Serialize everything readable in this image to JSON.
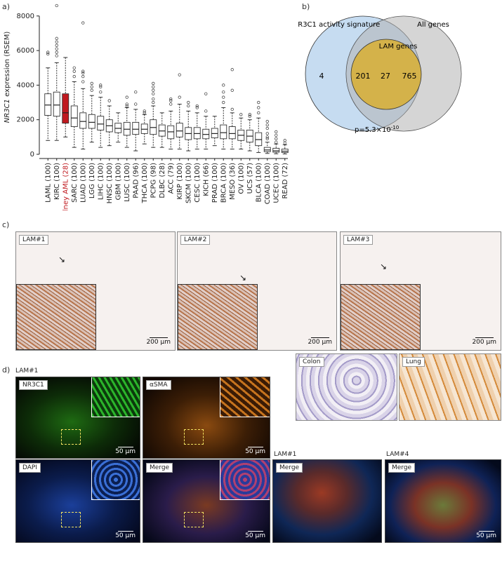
{
  "panels": {
    "a": "a)",
    "b": "b)",
    "c": "c)",
    "d": "d)"
  },
  "chart_data": {
    "type": "box",
    "ylabel_italic": "NR3C1",
    "ylabel_rest": " expression (RSEM)",
    "ylim": [
      0,
      8600
    ],
    "yticks": [
      0,
      2000,
      4000,
      6000,
      8000
    ],
    "highlight_color": "#c0191f",
    "categories": [
      {
        "label": "LAML (100)",
        "median": 2850,
        "q1": 2250,
        "q3": 3500,
        "lo": 800,
        "hi": 5000,
        "out": [
          5800,
          5900
        ]
      },
      {
        "label": "KIRC (100)",
        "median": 2850,
        "q1": 2200,
        "q3": 3600,
        "lo": 800,
        "hi": 5300,
        "out": [
          5700,
          5900,
          6100,
          6300,
          6500,
          6700,
          8600
        ]
      },
      {
        "label": "Kidney AML (28)",
        "median": 2400,
        "q1": 1800,
        "q3": 3500,
        "lo": 1000,
        "hi": 5600,
        "out": [],
        "highlight": true
      },
      {
        "label": "SARC (100)",
        "median": 2100,
        "q1": 1600,
        "q3": 2800,
        "lo": 400,
        "hi": 4200,
        "out": [
          4500,
          4800,
          5000
        ]
      },
      {
        "label": "LUAD (100)",
        "median": 1900,
        "q1": 1500,
        "q3": 2400,
        "lo": 300,
        "hi": 3800,
        "out": [
          4200,
          4500,
          4700,
          4800,
          7600
        ]
      },
      {
        "label": "LGG (100)",
        "median": 1850,
        "q1": 1500,
        "q3": 2300,
        "lo": 700,
        "hi": 3400,
        "out": [
          3700,
          3900,
          4100
        ]
      },
      {
        "label": "LIHC (100)",
        "median": 1750,
        "q1": 1400,
        "q3": 2200,
        "lo": 400,
        "hi": 3300,
        "out": [
          3600,
          3900,
          4000
        ]
      },
      {
        "label": "HNSC (100)",
        "median": 1650,
        "q1": 1300,
        "q3": 2000,
        "lo": 500,
        "hi": 2800,
        "out": [
          3100
        ]
      },
      {
        "label": "GBM (100)",
        "median": 1500,
        "q1": 1250,
        "q3": 1800,
        "lo": 700,
        "hi": 2400,
        "out": []
      },
      {
        "label": "LUSC (100)",
        "median": 1450,
        "q1": 1100,
        "q3": 1850,
        "lo": 400,
        "hi": 2700,
        "out": [
          2800,
          2900,
          3300
        ]
      },
      {
        "label": "PAAD (96)",
        "median": 1450,
        "q1": 1150,
        "q3": 1850,
        "lo": 200,
        "hi": 2600,
        "out": [
          2900,
          3600
        ]
      },
      {
        "label": "THCA (100)",
        "median": 1450,
        "q1": 1200,
        "q3": 1750,
        "lo": 600,
        "hi": 2300,
        "out": [
          2400,
          2500
        ]
      },
      {
        "label": "PCPG (98)",
        "median": 1550,
        "q1": 1150,
        "q3": 2000,
        "lo": 400,
        "hi": 2800,
        "out": [
          3000,
          3200,
          3500,
          3700,
          3900,
          4100
        ]
      },
      {
        "label": "DLBC (28)",
        "median": 1350,
        "q1": 1050,
        "q3": 1700,
        "lo": 400,
        "hi": 2400,
        "out": []
      },
      {
        "label": "ACC (79)",
        "median": 1300,
        "q1": 900,
        "q3": 1650,
        "lo": 300,
        "hi": 2500,
        "out": [
          2900,
          3100,
          3200
        ]
      },
      {
        "label": "KIRP (100)",
        "median": 1350,
        "q1": 1000,
        "q3": 1800,
        "lo": 300,
        "hi": 2900,
        "out": [
          3300,
          4600
        ]
      },
      {
        "label": "SKCM (100)",
        "median": 1200,
        "q1": 850,
        "q3": 1550,
        "lo": 200,
        "hi": 2500,
        "out": [
          2800,
          3000
        ]
      },
      {
        "label": "CESC (100)",
        "median": 1200,
        "q1": 900,
        "q3": 1550,
        "lo": 300,
        "hi": 2400,
        "out": [
          2700,
          2800
        ]
      },
      {
        "label": "KICH (66)",
        "median": 1150,
        "q1": 900,
        "q3": 1450,
        "lo": 300,
        "hi": 2200,
        "out": [
          2500,
          3500
        ]
      },
      {
        "label": "PRAD (100)",
        "median": 1200,
        "q1": 950,
        "q3": 1500,
        "lo": 500,
        "hi": 2200,
        "out": []
      },
      {
        "label": "BRCA (100)",
        "median": 1250,
        "q1": 900,
        "q3": 1700,
        "lo": 300,
        "hi": 2700,
        "out": [
          3000,
          3300,
          3600,
          4000
        ]
      },
      {
        "label": "MESO (36)",
        "median": 1200,
        "q1": 900,
        "q3": 1600,
        "lo": 300,
        "hi": 2400,
        "out": [
          2600,
          3700,
          4900
        ]
      },
      {
        "label": "OV (100)",
        "median": 1100,
        "q1": 800,
        "q3": 1400,
        "lo": 300,
        "hi": 2100,
        "out": [
          2300
        ]
      },
      {
        "label": "UCS (57)",
        "median": 1050,
        "q1": 700,
        "q3": 1400,
        "lo": 200,
        "hi": 2000,
        "out": [
          2200,
          2300
        ]
      },
      {
        "label": "BLCA (100)",
        "median": 850,
        "q1": 500,
        "q3": 1250,
        "lo": 100,
        "hi": 2100,
        "out": [
          2400,
          2700,
          3000
        ]
      },
      {
        "label": "COAD (100)",
        "median": 250,
        "q1": 150,
        "q3": 400,
        "lo": 50,
        "hi": 700,
        "out": [
          900,
          1000,
          1200,
          1500,
          1700,
          1900
        ]
      },
      {
        "label": "UCEC (100)",
        "median": 200,
        "q1": 120,
        "q3": 350,
        "lo": 30,
        "hi": 600,
        "out": [
          700,
          900,
          1100,
          1300
        ]
      },
      {
        "label": "READ (72)",
        "median": 180,
        "q1": 100,
        "q3": 300,
        "lo": 20,
        "hi": 550,
        "out": [
          650,
          800
        ]
      }
    ]
  },
  "venn": {
    "left_label": "NR3C1 activity signature",
    "right_label": "All genes",
    "inner_label": "LAM genes",
    "count_left_only": "4",
    "count_left_right": "201",
    "count_all_three": "27",
    "count_inner_only": "765",
    "pvalue_prefix": "p=5.3×10",
    "pvalue_exp": "-10",
    "colors": {
      "left": "#bcd6ee",
      "right": "#c8c8c8",
      "inner": "#d4b24a"
    }
  },
  "ihc": {
    "samples": [
      {
        "tag": "LAM#1",
        "scale": "200 μm"
      },
      {
        "tag": "LAM#2",
        "scale": "200 μm"
      },
      {
        "tag": "LAM#3",
        "scale": "200 μm"
      }
    ],
    "controls": [
      {
        "tag": "Colon"
      },
      {
        "tag": "Lung"
      }
    ]
  },
  "fluor": {
    "sample_label": "LAM#1",
    "panels": [
      {
        "tag": "NR3C1",
        "scale": "50 μm"
      },
      {
        "tag": "αSMA",
        "scale": "50 μm"
      },
      {
        "tag": "DAPI",
        "scale": "50 μm"
      },
      {
        "tag": "Merge",
        "scale": "50 μm"
      }
    ],
    "extra": [
      {
        "sample": "LAM#1",
        "tag": "Merge",
        "scale": "50 μm"
      },
      {
        "sample": "LAM#4",
        "tag": "Merge",
        "scale": "50 μm"
      }
    ]
  }
}
